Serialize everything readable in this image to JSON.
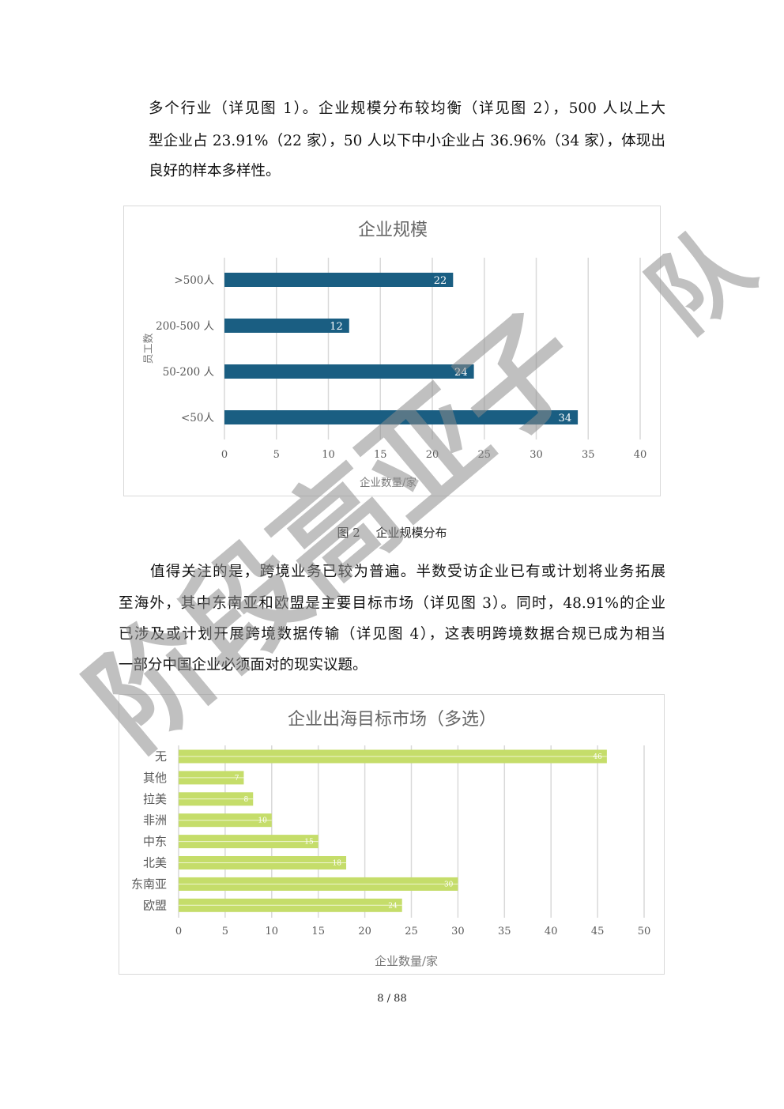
{
  "paragraph1": {
    "lines": [
      "多个行业（详见图 1）。企业规模分布较均衡（详见图 2），500 人以上大",
      "型企业占 23.91%（22 家），50 人以下中小企业占 36.96%（34 家），体现出",
      "良好的样本多样性。"
    ]
  },
  "figure2_caption": "图 2　 企业规模分布",
  "paragraph2": {
    "lines": [
      "值得关注的是，跨境业务已较为普遍。半数受访企业已有或计划将业务拓展",
      "至海外，其中东南亚和欧盟是主要目标市场（详见图 3）。同时，48.91%的企业",
      "已涉及或计划开展跨境数据传输（详见图 4），这表明跨境数据合规已成为相当",
      "一部分中国企业必须面对的现实议题。"
    ]
  },
  "page_number": "8  / 88",
  "watermark": {
    "text": "阶段高亚子",
    "text2": "队"
  },
  "chart_data": [
    {
      "type": "bar",
      "orientation": "horizontal",
      "title": "企业规模",
      "categories": [
        ">500人",
        "200-500 人",
        "50-200 人",
        "<50人"
      ],
      "values": [
        22,
        12,
        24,
        34
      ],
      "xlabel": "企业数量/家",
      "ylabel": "员工数",
      "xlim": [
        0,
        40
      ],
      "xticks": [
        "0",
        "5",
        "10",
        "15",
        "20",
        "25",
        "30",
        "35",
        "40"
      ],
      "grid": true,
      "data_labels": true,
      "color": "#1a5e82"
    },
    {
      "type": "bar",
      "orientation": "horizontal",
      "title": "企业出海目标市场（多选）",
      "categories": [
        "无",
        "其他",
        "拉美",
        "非洲",
        "中东",
        "北美",
        "东南亚",
        "欧盟"
      ],
      "values": [
        46,
        7,
        8,
        10,
        15,
        18,
        30,
        24
      ],
      "xlabel": "企业数量/家",
      "xlim": [
        0,
        50
      ],
      "xticks": [
        "0",
        "5",
        "10",
        "15",
        "20",
        "25",
        "30",
        "35",
        "40",
        "45",
        "50"
      ],
      "grid": true,
      "data_labels": true,
      "color": "#c5dd6a"
    }
  ]
}
